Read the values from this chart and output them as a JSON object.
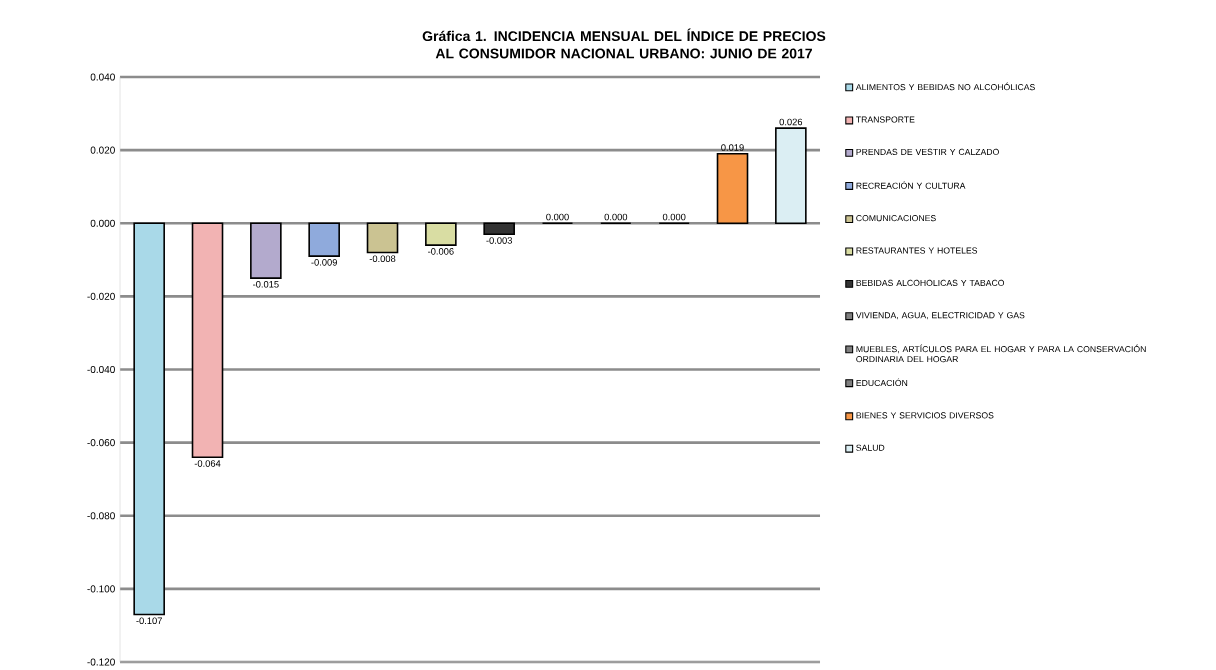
{
  "chart_data": {
    "type": "bar",
    "title": "Gráfica 1.  INCIDENCIA MENSUAL  DEL ÍNDICE DE PRECIOS AL CONSUMIDOR NACIONAL URBANO: JUNIO DE 2017",
    "categories": [
      null,
      null,
      null,
      null,
      null,
      null,
      null,
      null,
      null,
      null,
      null,
      null
    ],
    "series": [
      {
        "name": "ALIMENTOS Y BEBIDAS NO ALCOHÓLICAS",
        "color": "#a9d9e8",
        "values": [
          -0.107,
          null,
          null,
          null,
          null,
          null,
          null,
          null,
          null,
          null,
          null,
          null
        ],
        "value_labels": [
          "-0.107",
          null,
          null,
          null,
          null,
          null,
          null,
          null,
          null,
          null,
          null,
          null
        ]
      },
      {
        "name": "TRANSPORTE",
        "color": "#f2b3b3",
        "values": [
          null,
          -0.064,
          null,
          null,
          null,
          null,
          null,
          null,
          null,
          null,
          null,
          null
        ],
        "value_labels": [
          null,
          "-0.064",
          null,
          null,
          null,
          null,
          null,
          null,
          null,
          null,
          null,
          null
        ]
      },
      {
        "name": "PRENDAS DE VESTIR Y CALZADO",
        "color": "#b3aacd",
        "values": [
          null,
          null,
          -0.015,
          null,
          null,
          null,
          null,
          null,
          null,
          null,
          null,
          null
        ],
        "value_labels": [
          null,
          null,
          "-0.015",
          null,
          null,
          null,
          null,
          null,
          null,
          null,
          null,
          null
        ]
      },
      {
        "name": "RECREACIÓN Y CULTURA",
        "color": "#8faadc",
        "values": [
          null,
          null,
          null,
          -0.009,
          null,
          null,
          null,
          null,
          null,
          null,
          null,
          null
        ],
        "value_labels": [
          null,
          null,
          null,
          "-0.009",
          null,
          null,
          null,
          null,
          null,
          null,
          null,
          null
        ]
      },
      {
        "name": "COMUNICACIONES",
        "color": "#cbc392",
        "values": [
          null,
          null,
          null,
          null,
          -0.008,
          null,
          null,
          null,
          null,
          null,
          null,
          null
        ],
        "value_labels": [
          null,
          null,
          null,
          null,
          "-0.008",
          null,
          null,
          null,
          null,
          null,
          null,
          null
        ]
      },
      {
        "name": "RESTAURANTES Y HOTELES",
        "color": "#d9dda3",
        "values": [
          null,
          null,
          null,
          null,
          null,
          -0.006,
          null,
          null,
          null,
          null,
          null,
          null
        ],
        "value_labels": [
          null,
          null,
          null,
          null,
          null,
          "-0.006",
          null,
          null,
          null,
          null,
          null,
          null
        ]
      },
      {
        "name": "BEBIDAS ALCOHOLICAS Y TABACO",
        "color": "#333333",
        "values": [
          null,
          null,
          null,
          null,
          null,
          null,
          -0.003,
          null,
          null,
          null,
          null,
          null
        ],
        "value_labels": [
          null,
          null,
          null,
          null,
          null,
          null,
          "-0.003",
          null,
          null,
          null,
          null,
          null
        ]
      },
      {
        "name": "VIVIENDA, AGUA, ELECTRICIDAD Y GAS",
        "color": "#7f7f7f",
        "values": [
          null,
          null,
          null,
          null,
          null,
          null,
          null,
          0.0,
          null,
          null,
          null,
          null
        ],
        "value_labels": [
          null,
          null,
          null,
          null,
          null,
          null,
          null,
          "0.000",
          null,
          null,
          null,
          null
        ]
      },
      {
        "name": "MUEBLES, ARTÍCULOS PARA EL HOGAR Y PARA LA CONSERVACIÓN ORDINARIA DEL HOGAR",
        "color": "#7f7f7f",
        "values": [
          null,
          null,
          null,
          null,
          null,
          null,
          null,
          null,
          0.0,
          null,
          null,
          null
        ],
        "value_labels": [
          null,
          null,
          null,
          null,
          null,
          null,
          null,
          null,
          "0.000",
          null,
          null,
          null
        ]
      },
      {
        "name": "EDUCACIÓN",
        "color": "#7f7f7f",
        "values": [
          null,
          null,
          null,
          null,
          null,
          null,
          null,
          null,
          null,
          0.0,
          null,
          null
        ],
        "value_labels": [
          null,
          null,
          null,
          null,
          null,
          null,
          null,
          null,
          null,
          "0.000",
          null,
          null
        ]
      },
      {
        "name": "BIENES Y SERVICIOS DIVERSOS",
        "color": "#f79646",
        "values": [
          null,
          null,
          null,
          null,
          null,
          null,
          null,
          null,
          null,
          null,
          0.019,
          null
        ],
        "value_labels": [
          null,
          null,
          null,
          null,
          null,
          null,
          null,
          null,
          null,
          null,
          "0.019",
          null
        ]
      },
      {
        "name": "SALUD",
        "color": "#dbeef3",
        "values": [
          null,
          null,
          null,
          null,
          null,
          null,
          null,
          null,
          null,
          null,
          null,
          0.026
        ],
        "value_labels": [
          null,
          null,
          null,
          null,
          null,
          null,
          null,
          null,
          null,
          null,
          null,
          "0.026"
        ]
      }
    ],
    "ylim": [
      -0.12,
      0.04
    ],
    "yticks": [
      {
        "value": -0.12,
        "label": "-0.120"
      },
      {
        "value": -0.1,
        "label": "-0.100"
      },
      {
        "value": -0.08,
        "label": "-0.080"
      },
      {
        "value": -0.06,
        "label": "-0.060"
      },
      {
        "value": -0.04,
        "label": "-0.040"
      },
      {
        "value": -0.02,
        "label": "-0.020"
      },
      {
        "value": 0.0,
        "label": "0.000"
      },
      {
        "value": 0.02,
        "label": "0.020"
      },
      {
        "value": 0.04,
        "label": "0.040"
      }
    ],
    "grid": "y",
    "legend": "right"
  }
}
